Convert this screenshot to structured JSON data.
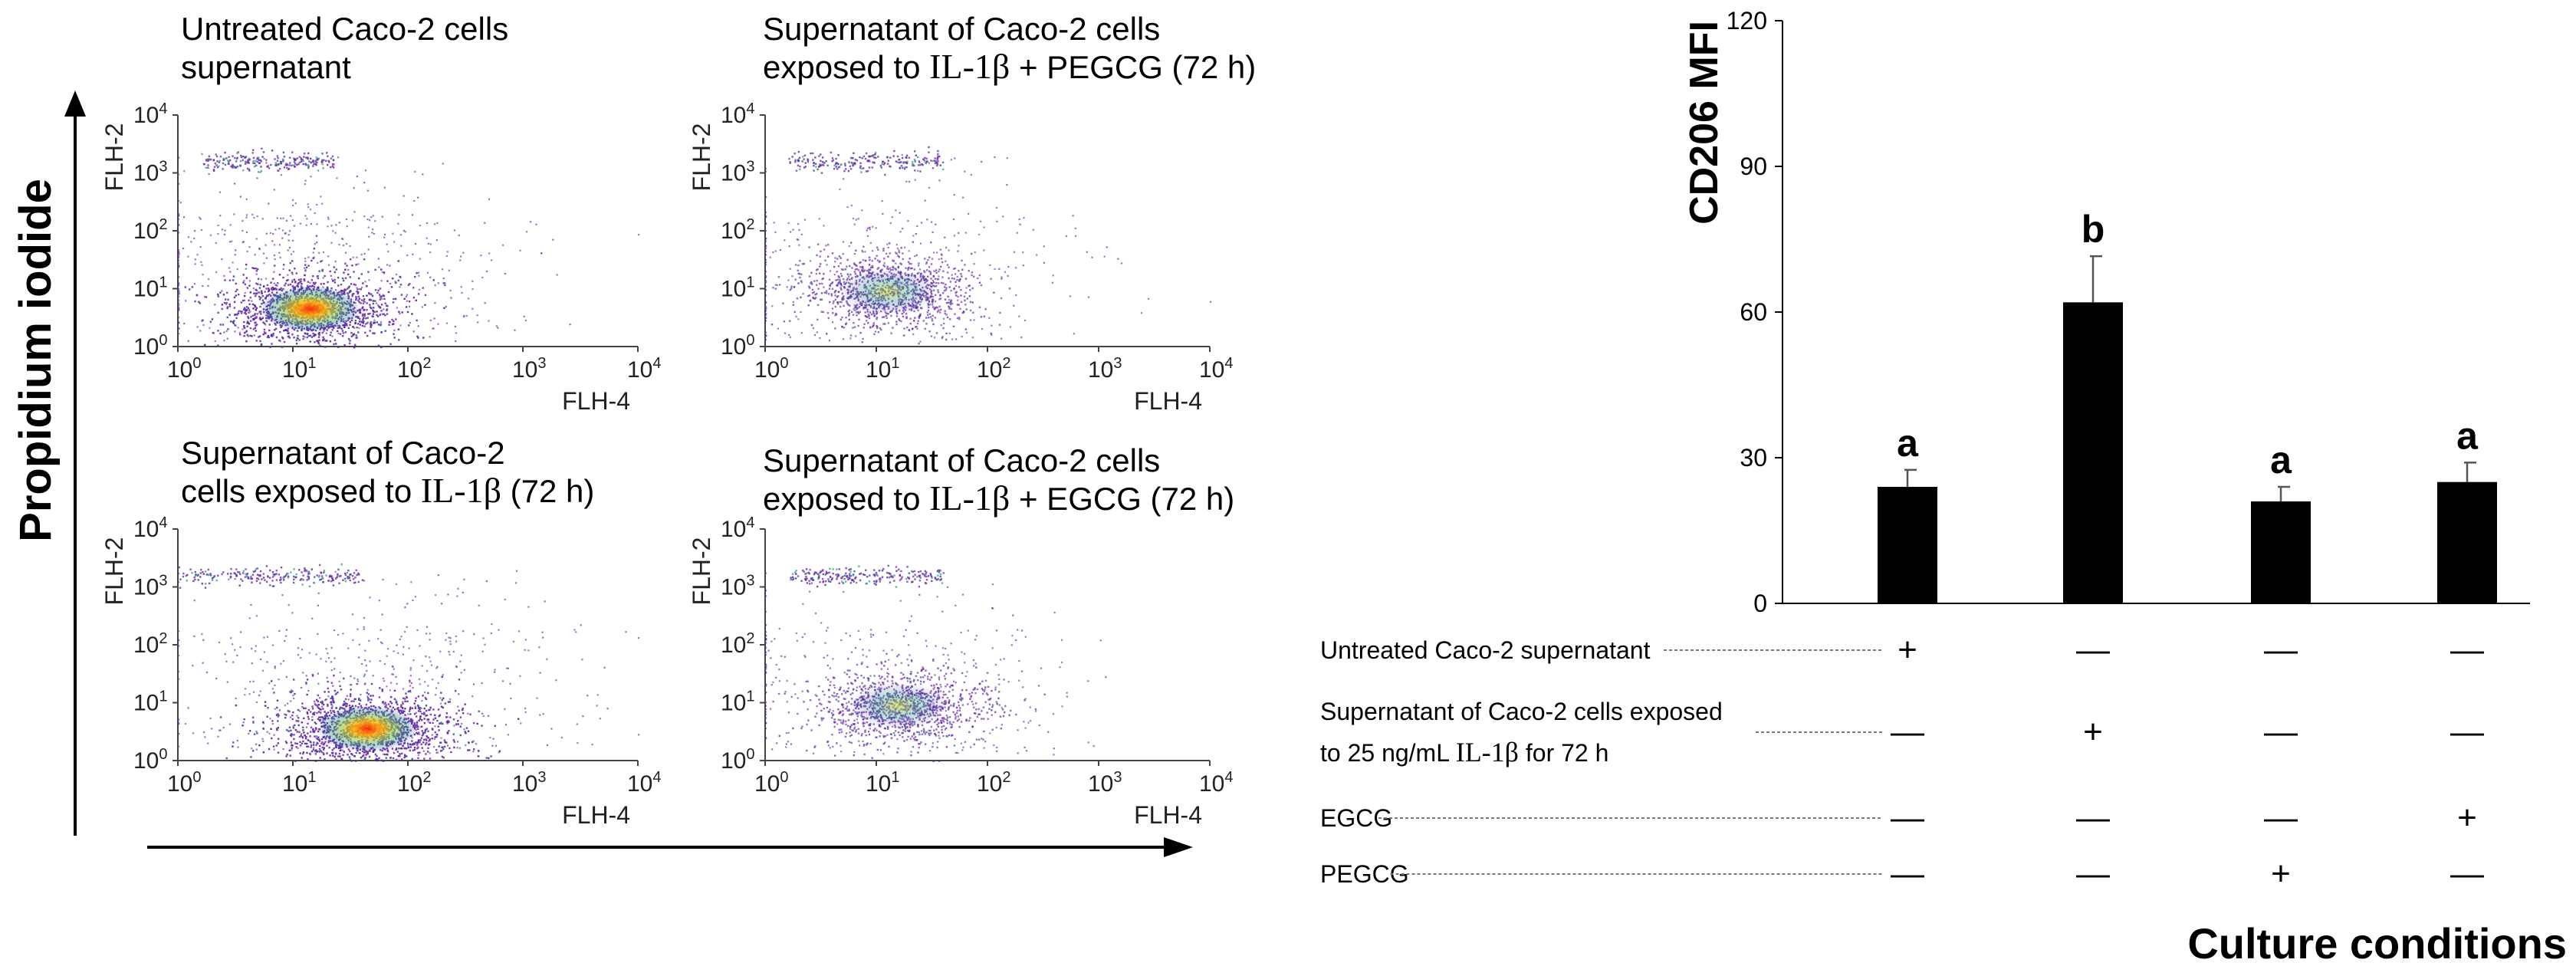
{
  "figure": {
    "y_axis_title": "Propidium iodide",
    "y_axis_color": "#000000"
  },
  "flow_panels": [
    {
      "id": "untreated",
      "title_line1": "Untreated Caco-2 cells",
      "title_line2": "supernatant",
      "title_il": "",
      "title_suffix": "",
      "xlabel": "FLH-4",
      "ylabel": "FLH-2",
      "cluster_center": [
        1.15,
        0.65
      ],
      "cluster_density": "high",
      "upper_band": [
        0.2,
        1.35
      ]
    },
    {
      "id": "il1b_pegcg",
      "title_line1": "Supernatant of Caco-2 cells",
      "title_line2": "exposed to ",
      "title_il": "IL-1β",
      "title_suffix": " + PEGCG (72 h)",
      "xlabel": "FLH-4",
      "ylabel": "FLH-2",
      "cluster_center": [
        1.1,
        0.95
      ],
      "cluster_density": "medium",
      "upper_band": [
        0.2,
        1.6
      ]
    },
    {
      "id": "il1b",
      "title_line1": "Supernatant of Caco-2",
      "title_line2": "cells exposed to ",
      "title_il": "IL-1β",
      "title_suffix": " (72 h)",
      "xlabel": "FLH-4",
      "ylabel": "FLH-2",
      "cluster_center": [
        1.65,
        0.55
      ],
      "cluster_density": "high",
      "upper_band": [
        0.0,
        1.6
      ]
    },
    {
      "id": "il1b_egcg",
      "title_line1": "Supernatant of Caco-2 cells",
      "title_line2": "exposed to ",
      "title_il": "IL-1β",
      "title_suffix": " + EGCG (72 h)",
      "xlabel": "FLH-4",
      "ylabel": "FLH-2",
      "cluster_center": [
        1.2,
        0.95
      ],
      "cluster_density": "medium",
      "upper_band": [
        0.2,
        1.6
      ]
    }
  ],
  "flow_axis": {
    "ticks": [
      "0",
      "1",
      "2",
      "3",
      "4"
    ],
    "tick_base": "10",
    "range_log10": [
      0,
      4
    ]
  },
  "chart_data": {
    "type": "bar",
    "title": "",
    "ylabel": "CD206 MFI",
    "xlabel": "Culture conditions",
    "ylim": [
      0,
      120
    ],
    "yticks": [
      0,
      30,
      60,
      90,
      120
    ],
    "categories": [
      "Untreated",
      "IL-1β supernatant",
      "PEGCG",
      "EGCG"
    ],
    "values": [
      24,
      62,
      21,
      25
    ],
    "errors": [
      3.5,
      9.5,
      3,
      4
    ],
    "letters": [
      "a",
      "b",
      "a",
      "a"
    ],
    "bar_color": "#000000"
  },
  "conditions": [
    {
      "label_line1": "Untreated Caco-2 supernatant",
      "label_line2": "",
      "label_il": "",
      "label_suffix": "",
      "signs": [
        "+",
        "—",
        "—",
        "—"
      ]
    },
    {
      "label_line1": "Supernatant of Caco-2 cells exposed",
      "label_line2": "to 25 ng/mL ",
      "label_il": "IL-1β",
      "label_suffix": " for 72 h",
      "signs": [
        "—",
        "+",
        "—",
        "—"
      ]
    },
    {
      "label_line1": "EGCG",
      "label_line2": "",
      "label_il": "",
      "label_suffix": "",
      "signs": [
        "—",
        "—",
        "—",
        "+"
      ]
    },
    {
      "label_line1": "PEGCG",
      "label_line2": "",
      "label_il": "",
      "label_suffix": "",
      "signs": [
        "—",
        "—",
        "+",
        "—"
      ]
    }
  ]
}
